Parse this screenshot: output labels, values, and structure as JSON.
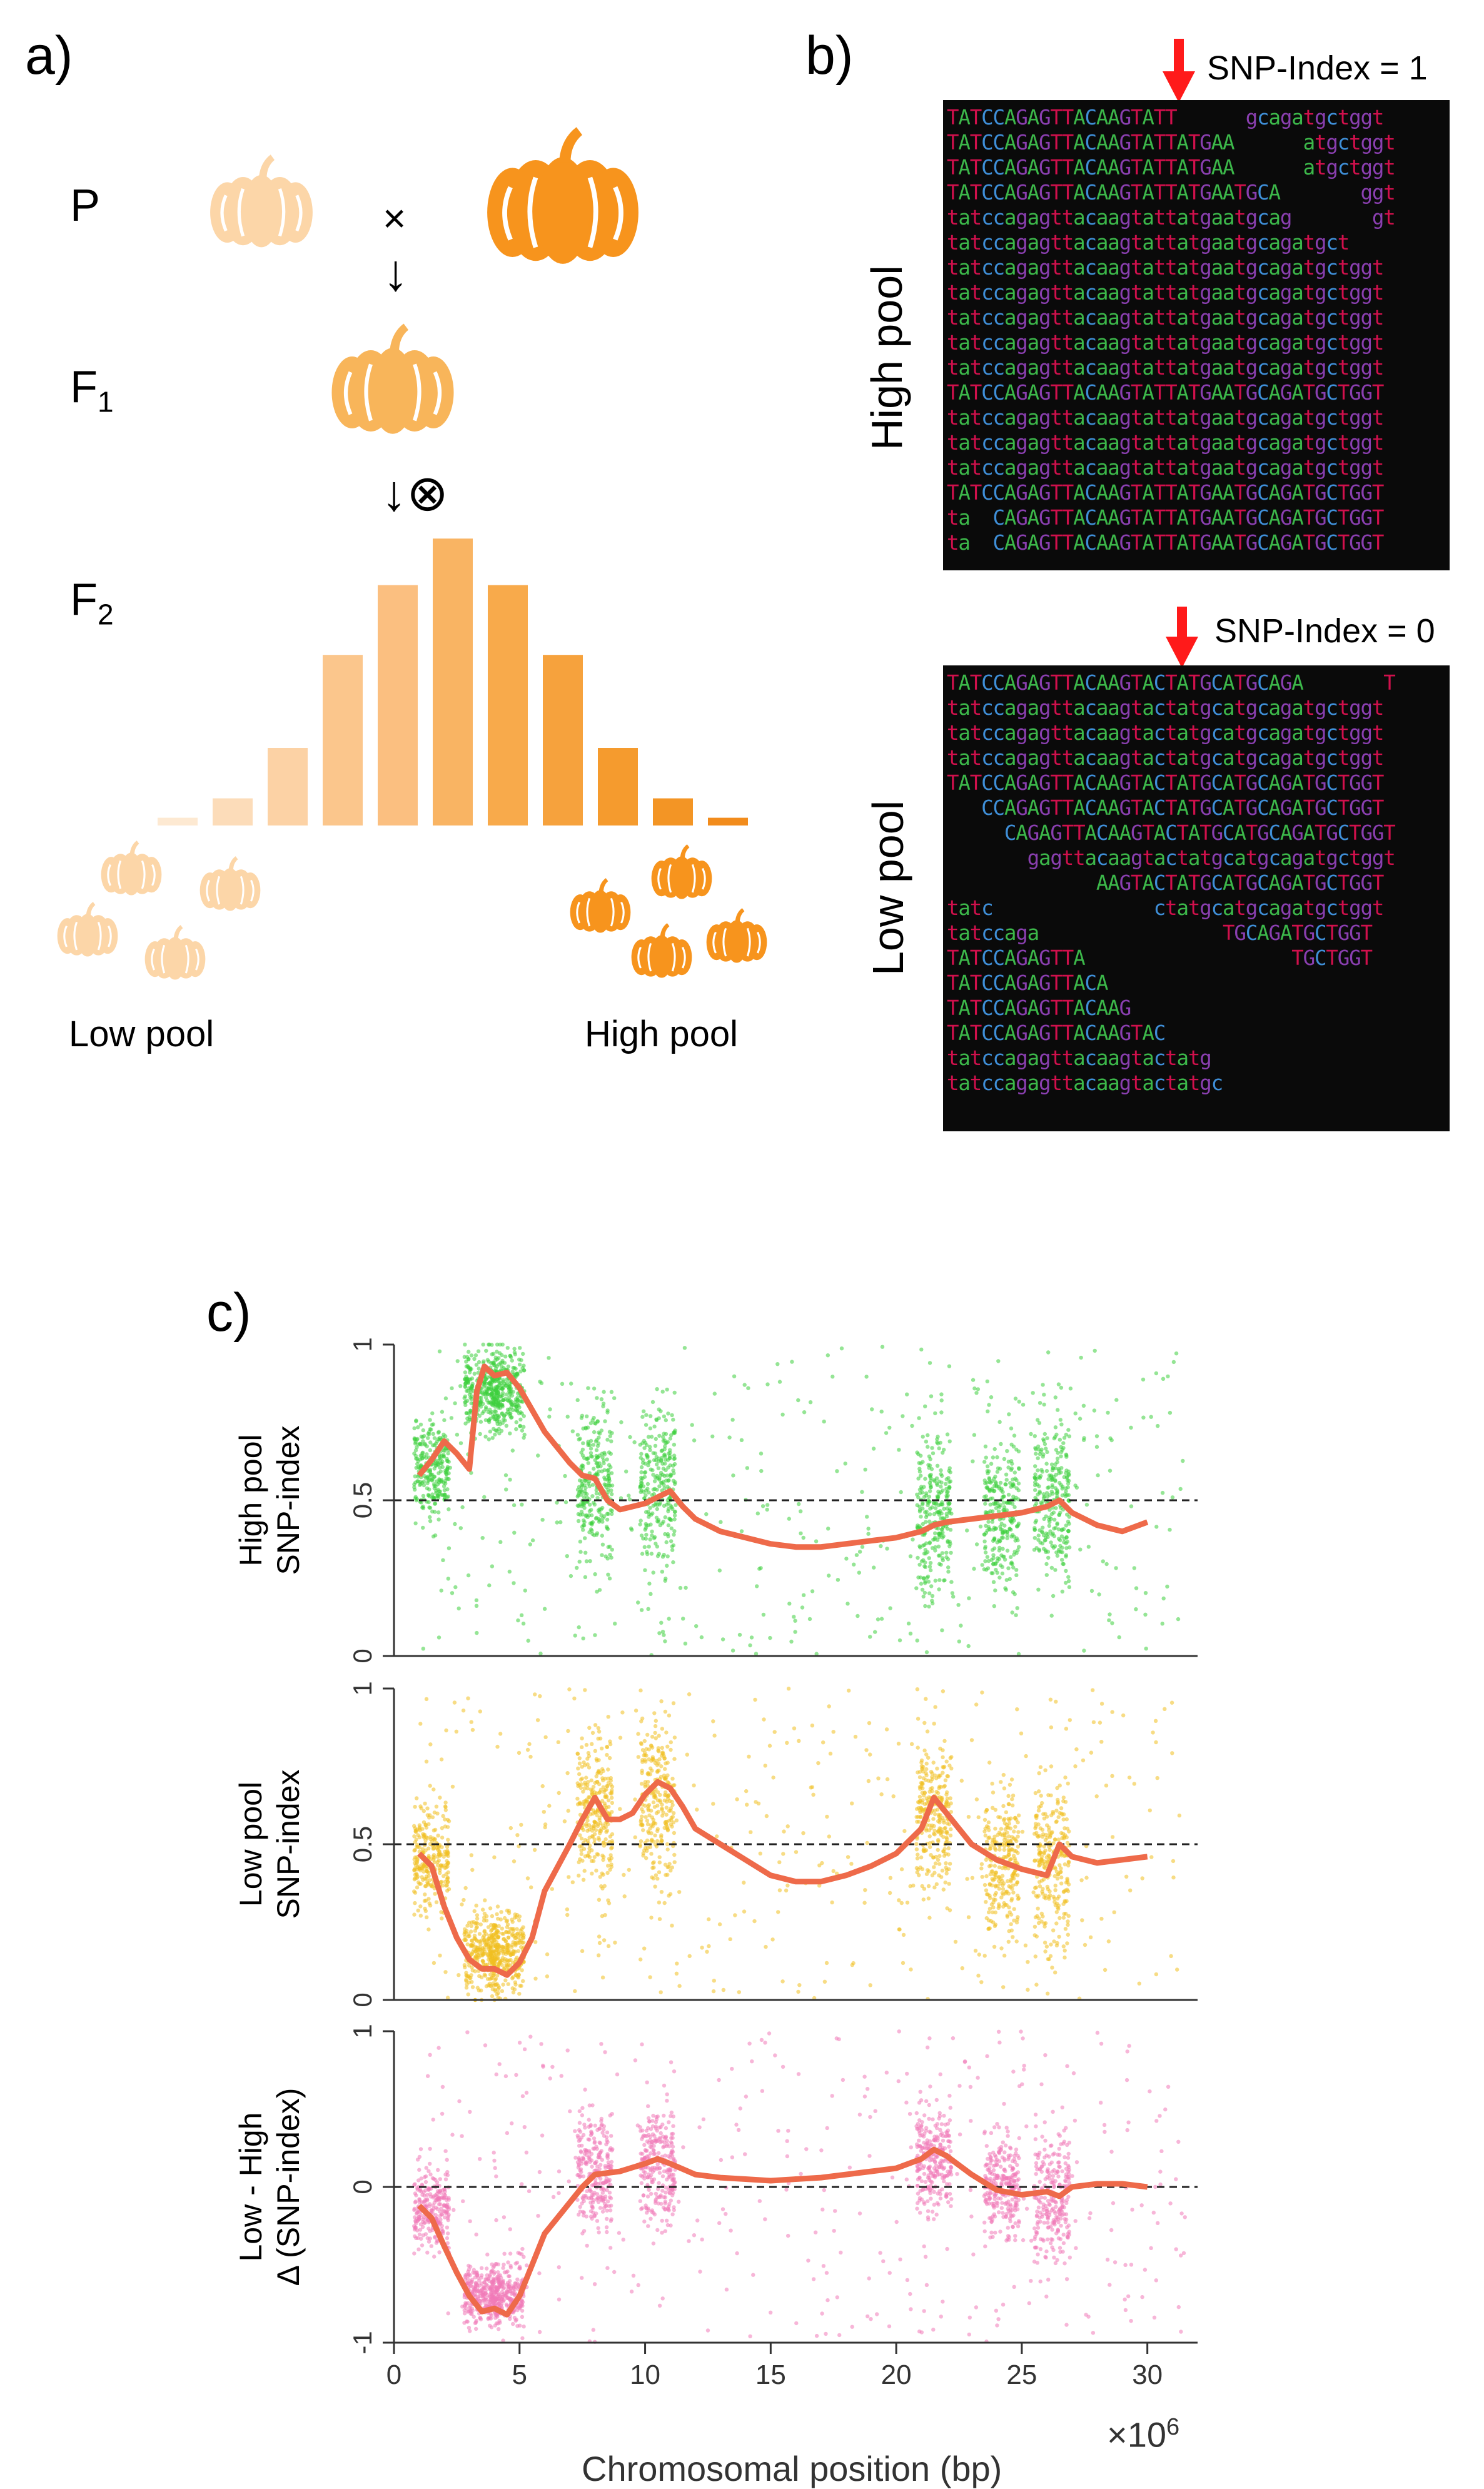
{
  "panel_a": {
    "label": "a)",
    "gen_p": "P",
    "gen_f1": "F",
    "gen_f1_sub": "1",
    "gen_f2": "F",
    "gen_f2_sub": "2",
    "cross_symbol": "×",
    "arrow_down": "↓",
    "selfing_symbol": "↓⊗",
    "low_pool_label": "Low pool",
    "high_pool_label": "High pool",
    "pumpkin_light": "#fcd6a8",
    "pumpkin_mid": "#f8b55a",
    "pumpkin_dark": "#f7941d",
    "f2_distribution": [
      2,
      7,
      20,
      44,
      62,
      74,
      62,
      44,
      20,
      7,
      2
    ],
    "f2_colors": [
      "#fde9d2",
      "#fcdcb9",
      "#fcd2a5",
      "#fbc68c",
      "#fbbf80",
      "#f9b463",
      "#f8aa4b",
      "#f6a23d",
      "#f59b2e",
      "#f39525",
      "#f28c1c"
    ]
  },
  "panel_b": {
    "label": "b)",
    "high_pool_title": "High pool",
    "low_pool_title": "Low pool",
    "snp_high": "SNP-Index = 1",
    "snp_low": "SNP-Index = 0",
    "arrow_color": "#ff1a1a",
    "high_reads": [
      "TATCCAGAGTTACAAGTATT      gcagatgctggt",
      "TATCCAGAGTTACAAGTATTATGAA      atgctggt",
      "TATCCAGAGTTACAAGTATTATGAA      atgctggt",
      "TATCCAGAGTTACAAGTATTATGAATGCA       ggt",
      "tatccagagttacaagtattatgaatgcag       gt",
      "tatccagagttacaagtattatgaatgcagatgct",
      "tatccagagttacaagtattatgaatgcagatgctggt",
      "tatccagagttacaagtattatgaatgcagatgctggt",
      "tatccagagttacaagtattatgaatgcagatgctggt",
      "tatccagagttacaagtattatgaatgcagatgctggt",
      "tatccagagttacaagtattatgaatgcagatgctggt",
      "TATCCAGAGTTACAAGTATTATGAATGCAGATGCTGGT",
      "tatccagagttacaagtattatgaatgcagatgctggt",
      "tatccagagttacaagtattatgaatgcagatgctggt",
      "tatccagagttacaagtattatgaatgcagatgctggt",
      "TATCCAGAGTTACAAGTATTATGAATGCAGATGCTGGT",
      "ta  CAGAGTTACAAGTATTATGAATGCAGATGCTGGT",
      "ta  CAGAGTTACAAGTATTATGAATGCAGATGCTGGT"
    ],
    "low_reads": [
      "TATCCAGAGTTACAAGTACTATGCATGCAGA       T",
      "tatccagagttacaagtactatgcatgcagatgctggt",
      "tatccagagttacaagtactatgcatgcagatgctggt",
      "tatccagagttacaagtactatgcatgcagatgctggt",
      "TATCCAGAGTTACAAGTACTATGCATGCAGATGCTGGT",
      "   CCAGAGTTACAAGTACTATGCATGCAGATGCTGGT",
      "     CAGAGTTACAAGTACTATGCATGCAGATGCTGGT",
      "       gagttacaagtactatgcatgcagatgctggt",
      "             AAGTACTATGCATGCAGATGCTGGT",
      "tatc              ctatgcatgcagatgctggt",
      "tatccaga                TGCAGATGCTGGT",
      "TATCCAGAGTTA                  TGCTGGT",
      "TATCCAGAGTTACA",
      "TATCCAGAGTTACAAG",
      "TATCCAGAGTTACAAGTAC",
      "tatccagagttacaagtactatg",
      "tatccagagttacaagtactatgc"
    ],
    "base_colors": {
      "A": "#3cb84a",
      "T": "#d0104c",
      "C": "#3f8fd8",
      "G": "#8a3fb0"
    }
  },
  "panel_c": {
    "label": "c)",
    "xlabel": "Chromosomal position (bp)",
    "x_multiplier": "×10",
    "x_multiplier_exp": "6"
  },
  "chart_data": [
    {
      "type": "scatter",
      "title": "",
      "ylabel_line1": "High pool",
      "ylabel_line2": "SNP-index",
      "ylim": [
        0,
        1
      ],
      "yticks": [
        "0",
        "0.5",
        "1"
      ],
      "xlim": [
        0,
        32
      ],
      "reference_line": 0.5,
      "point_color": "#3ecf3e",
      "line_color": "#ee6a4a",
      "clusters": [
        [
          1.5,
          0.6,
          0.12
        ],
        [
          3.5,
          0.85,
          0.1
        ],
        [
          4.5,
          0.85,
          0.1
        ],
        [
          8,
          0.55,
          0.18
        ],
        [
          10.5,
          0.55,
          0.2
        ],
        [
          21.5,
          0.45,
          0.18
        ],
        [
          24.2,
          0.45,
          0.18
        ],
        [
          26.2,
          0.5,
          0.2
        ]
      ],
      "trend": {
        "x": [
          1,
          1.5,
          2,
          2.5,
          3,
          3.3,
          3.6,
          4,
          4.5,
          5,
          6,
          7,
          7.5,
          8,
          8.5,
          9,
          9.5,
          10,
          10.5,
          11,
          11.5,
          12,
          13,
          14,
          15,
          16,
          17,
          18,
          19,
          20,
          21,
          21.5,
          22,
          23,
          24,
          25,
          26,
          26.5,
          27,
          28,
          29,
          30
        ],
        "y": [
          0.58,
          0.63,
          0.69,
          0.65,
          0.6,
          0.85,
          0.93,
          0.9,
          0.91,
          0.86,
          0.72,
          0.62,
          0.58,
          0.57,
          0.5,
          0.47,
          0.48,
          0.49,
          0.51,
          0.53,
          0.48,
          0.44,
          0.4,
          0.38,
          0.36,
          0.35,
          0.35,
          0.36,
          0.37,
          0.38,
          0.4,
          0.42,
          0.43,
          0.44,
          0.45,
          0.46,
          0.48,
          0.5,
          0.46,
          0.42,
          0.4,
          0.43
        ]
      }
    },
    {
      "type": "scatter",
      "title": "",
      "ylabel_line1": "Low pool",
      "ylabel_line2": "SNP-index",
      "ylim": [
        0,
        1
      ],
      "yticks": [
        "0",
        "0.5",
        "1"
      ],
      "xlim": [
        0,
        32
      ],
      "reference_line": 0.5,
      "point_color": "#f0c020",
      "line_color": "#ee6a4a",
      "clusters": [
        [
          1.5,
          0.45,
          0.12
        ],
        [
          3.5,
          0.15,
          0.1
        ],
        [
          4.5,
          0.15,
          0.1
        ],
        [
          8,
          0.62,
          0.18
        ],
        [
          10.5,
          0.65,
          0.2
        ],
        [
          21.5,
          0.58,
          0.18
        ],
        [
          24.2,
          0.45,
          0.18
        ],
        [
          26.2,
          0.45,
          0.2
        ]
      ],
      "trend": {
        "x": [
          1,
          1.5,
          2,
          2.5,
          3,
          3.5,
          4,
          4.5,
          5,
          5.5,
          6,
          7,
          7.5,
          8,
          8.5,
          9,
          9.5,
          10,
          10.5,
          11,
          11.5,
          12,
          13,
          14,
          15,
          16,
          17,
          18,
          19,
          20,
          21,
          21.5,
          22,
          23,
          24,
          25,
          26,
          26.5,
          27,
          28,
          29,
          30
        ],
        "y": [
          0.47,
          0.43,
          0.3,
          0.2,
          0.13,
          0.1,
          0.1,
          0.08,
          0.12,
          0.2,
          0.35,
          0.5,
          0.58,
          0.65,
          0.58,
          0.58,
          0.6,
          0.66,
          0.7,
          0.68,
          0.62,
          0.55,
          0.5,
          0.45,
          0.4,
          0.38,
          0.38,
          0.4,
          0.43,
          0.47,
          0.55,
          0.65,
          0.6,
          0.5,
          0.45,
          0.42,
          0.4,
          0.5,
          0.46,
          0.44,
          0.45,
          0.46
        ]
      }
    },
    {
      "type": "scatter",
      "title": "",
      "ylabel_line1": "Low - High",
      "ylabel_line2": "Δ (SNP-index)",
      "ylim": [
        -1,
        1
      ],
      "yticks": [
        "-1",
        "0",
        "1"
      ],
      "xlim": [
        0,
        32
      ],
      "reference_line": 0,
      "point_color": "#f07ab8",
      "line_color": "#ee6a4a",
      "clusters": [
        [
          1.5,
          -0.15,
          0.2
        ],
        [
          3.5,
          -0.7,
          0.15
        ],
        [
          4.5,
          -0.7,
          0.15
        ],
        [
          8,
          0.1,
          0.3
        ],
        [
          10.5,
          0.15,
          0.3
        ],
        [
          21.5,
          0.15,
          0.3
        ],
        [
          24.2,
          0.0,
          0.25
        ],
        [
          26.2,
          -0.05,
          0.3
        ]
      ],
      "trend": {
        "x": [
          1,
          1.5,
          2,
          2.5,
          3,
          3.5,
          4,
          4.5,
          5,
          5.5,
          6,
          7,
          7.5,
          8,
          9,
          10,
          10.5,
          11,
          12,
          13,
          14,
          15,
          16,
          17,
          18,
          19,
          20,
          21,
          21.5,
          22,
          23,
          24,
          25,
          26,
          26.5,
          27,
          28,
          29,
          30
        ],
        "y": [
          -0.12,
          -0.2,
          -0.38,
          -0.55,
          -0.7,
          -0.8,
          -0.78,
          -0.82,
          -0.7,
          -0.5,
          -0.3,
          -0.1,
          0.0,
          0.08,
          0.1,
          0.15,
          0.18,
          0.15,
          0.08,
          0.06,
          0.05,
          0.04,
          0.05,
          0.06,
          0.08,
          0.1,
          0.12,
          0.18,
          0.24,
          0.2,
          0.08,
          -0.02,
          -0.05,
          -0.03,
          -0.06,
          0.0,
          0.02,
          0.02,
          0.0
        ]
      }
    }
  ],
  "x_axis": {
    "ticks": [
      0,
      5,
      10,
      15,
      20,
      25,
      30
    ],
    "tick_labels": [
      "0",
      "5",
      "10",
      "15",
      "20",
      "25",
      "30"
    ]
  }
}
